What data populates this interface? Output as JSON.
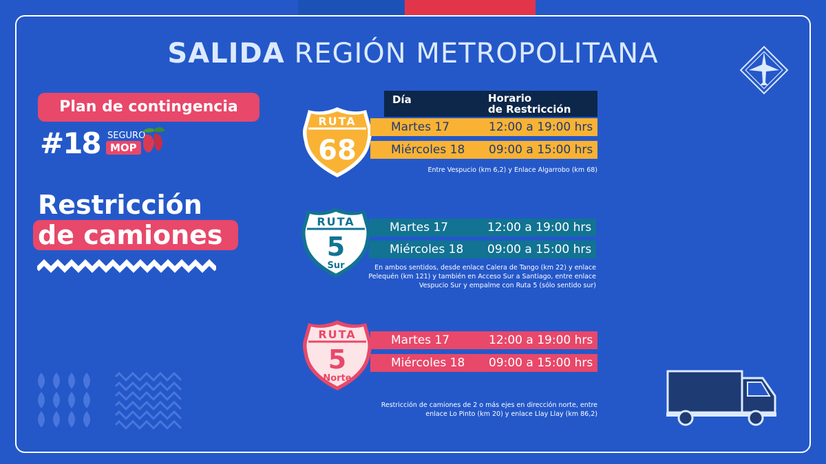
{
  "title": {
    "bold": "SALIDA",
    "rest": "REGIÓN METROPOLITANA"
  },
  "plan_label": "Plan de contingencia",
  "hashtag": {
    "tag": "#18",
    "seguro": "SEGURO",
    "mop": "MOP"
  },
  "restriction": {
    "line1": "Restricción",
    "line2": "de camiones"
  },
  "table_header": {
    "day": "Día",
    "schedule_line1": "Horario",
    "schedule_line2": "de Restricción"
  },
  "routes": [
    {
      "shield_top": "RUTA",
      "shield_number": "68",
      "shield_sub": "",
      "color": "#f9b234",
      "rows": [
        {
          "day": "Martes 17",
          "hours": "12:00 a 19:00 hrs"
        },
        {
          "day": "Miércoles 18",
          "hours": "09:00 a 15:00 hrs"
        }
      ],
      "note": [
        "Entre Vespucio (km 6,2) y Enlace Algarrobo (km 68)"
      ]
    },
    {
      "shield_top": "RUTA",
      "shield_number": "5",
      "shield_sub": "Sur",
      "color": "#127393",
      "rows": [
        {
          "day": "Martes 17",
          "hours": "12:00 a 19:00 hrs"
        },
        {
          "day": "Miércoles 18",
          "hours": "09:00 a 15:00 hrs"
        }
      ],
      "note": [
        "En ambos sentidos, desde enlace Calera de Tango (km 22) y enlace",
        "Pelequén (km 121) y también en Acceso Sur a Santiago, entre enlace",
        "Vespucio Sur y empalme con Ruta 5 (sólo sentido sur)"
      ]
    },
    {
      "shield_top": "RUTA",
      "shield_number": "5",
      "shield_sub": "Norte",
      "color": "#e8486a",
      "rows": [
        {
          "day": "Martes 17",
          "hours": "12:00 a 19:00 hrs"
        },
        {
          "day": "Miércoles 18",
          "hours": "09:00 a 15:00 hrs"
        }
      ],
      "note": [
        "Restricción de camiones de 2 o más ejes en dirección norte, entre",
        "enlace Lo Pinto (km 20) y enlace Llay Llay (km 86,2)"
      ]
    }
  ],
  "icons": {
    "top_right": "airplane-diamond-icon",
    "bottom_right": "truck-icon",
    "bottom_left": "decorative-pattern-icon",
    "hashtag_fruit": "copihue-flower-icon"
  }
}
